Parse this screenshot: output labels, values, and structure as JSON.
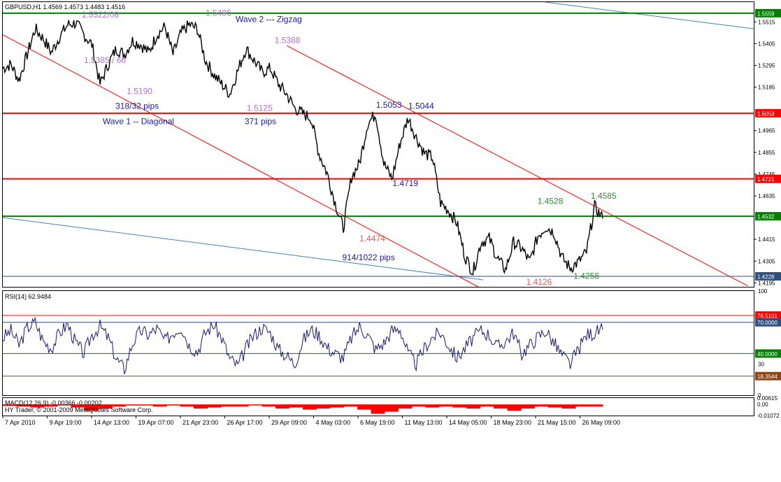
{
  "window": {
    "title": "GBPUSD,H1  1.4569 1.4573 1.4483 1.4516",
    "copyright": "HY Trader, © 2001-2009 MetaQuotes Software Corp."
  },
  "chart_data": [
    {
      "type": "line",
      "panel": "price",
      "symbol": "GBPUSD",
      "timeframe": "H1",
      "ylim": [
        1.4175,
        1.5615
      ],
      "price_ticks": [
        "1.5515",
        "1.5405",
        "1.5295",
        "1.5185",
        "1.4965",
        "1.4855",
        "1.4745",
        "1.4635",
        "1.4415",
        "1.4305",
        "1.4195"
      ],
      "x_labels": [
        "7 Apr 2010",
        "9 Apr 19:00",
        "14 Apr 13:00",
        "19 Apr 07:00",
        "21 Apr 23:00",
        "26 Apr 17:00",
        "29 Apr 09:00",
        "4 May 03:00",
        "6 May 19:00",
        "11 May 13:00",
        "14 May 05:00",
        "18 May 23:00",
        "21 May 15:00",
        "26 May 09:00"
      ],
      "series": [
        {
          "values": [
            1.528,
            1.53,
            1.522,
            1.535,
            1.548,
            1.543,
            1.536,
            1.544,
            1.55,
            1.551,
            1.545,
            1.54,
            1.52,
            1.53,
            1.538,
            1.535,
            1.542,
            1.54,
            1.536,
            1.545,
            1.549,
            1.535,
            1.546,
            1.55,
            1.548,
            1.532,
            1.525,
            1.52,
            1.515,
            1.527,
            1.538,
            1.532,
            1.526,
            1.528,
            1.52,
            1.515,
            1.508,
            1.505,
            1.503,
            1.485,
            1.475,
            1.46,
            1.447,
            1.473,
            1.48,
            1.5,
            1.505,
            1.48,
            1.472,
            1.49,
            1.503,
            1.493,
            1.485,
            1.483,
            1.46,
            1.456,
            1.45,
            1.433,
            1.425,
            1.44,
            1.442,
            1.432,
            1.426,
            1.44,
            1.437,
            1.43,
            1.443,
            1.448,
            1.445,
            1.432,
            1.427,
            1.43,
            1.435,
            1.458,
            1.452
          ]
        }
      ],
      "horizontal_lines": [
        {
          "value": 1.5559,
          "label": "1.5559",
          "color": "#008000"
        },
        {
          "value": 1.5053,
          "label": "1.5053",
          "color": "#ff0000"
        },
        {
          "value": 1.4721,
          "label": "1.4721",
          "color": "#ff0000"
        },
        {
          "value": 1.4532,
          "label": "1.4532",
          "color": "#008000"
        },
        {
          "value": 1.4228,
          "label": "1.4228",
          "color": "#2f4f7f"
        }
      ],
      "trend_lines": [
        {
          "color": "#ff0000",
          "from": {
            "xf": 0.0,
            "y": 1.545
          },
          "to": {
            "xf": 0.633,
            "y": 1.4175
          }
        },
        {
          "color": "#ff0000",
          "from": {
            "xf": 0.378,
            "y": 1.5395
          },
          "to": {
            "xf": 0.992,
            "y": 1.418
          }
        },
        {
          "color": "#4682b4",
          "from": {
            "xf": 0.0,
            "y": 1.4525
          },
          "to": {
            "xf": 0.64,
            "y": 1.421
          }
        },
        {
          "color": "#4682b4",
          "from": {
            "xf": 0.722,
            "y": 1.5615
          },
          "to": {
            "xf": 1.0,
            "y": 1.548
          }
        }
      ],
      "annotations": [
        {
          "text": "1.5522/08",
          "color": "#b070c8",
          "xf": 0.105,
          "y": 1.5537
        },
        {
          "text": "1.5496",
          "color": "#b070c8",
          "xf": 0.27,
          "y": 1.5546
        },
        {
          "text": "Wave 2 --- Zigzag",
          "color": "#1a1aa6",
          "xf": 0.31,
          "y": 1.5515
        },
        {
          "text": "1.5388",
          "color": "#b070c8",
          "xf": 0.362,
          "y": 1.5408
        },
        {
          "text": "1.5385 / 66",
          "color": "#b070c8",
          "xf": 0.108,
          "y": 1.5307
        },
        {
          "text": "1.5190",
          "color": "#b070c8",
          "xf": 0.165,
          "y": 1.515
        },
        {
          "text": "318/32  pips",
          "color": "#1a1aa6",
          "xf": 0.15,
          "y": 1.5075
        },
        {
          "text": "1.5125",
          "color": "#b070c8",
          "xf": 0.325,
          "y": 1.5065
        },
        {
          "text": "Wave 1 -- Diagonal",
          "color": "#1a1aa6",
          "xf": 0.133,
          "y": 1.4997
        },
        {
          "text": "371   pips",
          "color": "#1a1aa6",
          "xf": 0.322,
          "y": 1.4997
        },
        {
          "text": "1.5053",
          "color": "#1a1aa6",
          "xf": 0.497,
          "y": 1.508
        },
        {
          "text": "1.5044",
          "color": "#1a1aa6",
          "xf": 0.54,
          "y": 1.5075
        },
        {
          "text": "1.4719",
          "color": "#1a1aa6",
          "xf": 0.519,
          "y": 1.4685
        },
        {
          "text": "1.4528",
          "color": "#2e8b2e",
          "xf": 0.712,
          "y": 1.4595
        },
        {
          "text": "1.4585",
          "color": "#2e8b2e",
          "xf": 0.783,
          "y": 1.462
        },
        {
          "text": "1.4474",
          "color": "#e06060",
          "xf": 0.475,
          "y": 1.4405
        },
        {
          "text": "914/1022   pips",
          "color": "#1a1aa6",
          "xf": 0.452,
          "y": 1.431
        },
        {
          "text": "1.4126",
          "color": "#e06060",
          "xf": 0.697,
          "y": 1.4185
        },
        {
          "text": "1.4258",
          "color": "#2e8b2e",
          "xf": 0.76,
          "y": 1.4215
        }
      ]
    },
    {
      "type": "line",
      "panel": "rsi",
      "title": "RSI(14) 62.9484",
      "ylim": [
        0,
        100
      ],
      "ticks": [
        "100",
        "40.0000",
        "30",
        "0"
      ],
      "levels": [
        {
          "value": 76.5101,
          "label": "76.5101",
          "color": "#ff0000"
        },
        {
          "value": 70.0,
          "label": "70.0000",
          "color": "#2f4f7f"
        },
        {
          "value": 40.0,
          "label": "40.0000",
          "color": "#008000"
        },
        {
          "value": 18.3544,
          "label": "18.3544",
          "color": "#8b4513"
        }
      ],
      "series": [
        {
          "values": [
            55,
            62,
            48,
            65,
            70,
            52,
            45,
            60,
            68,
            50,
            40,
            58,
            66,
            55,
            35,
            25,
            50,
            62,
            58,
            64,
            52,
            60,
            66,
            48,
            42,
            60,
            68,
            55,
            35,
            28,
            45,
            58,
            65,
            60,
            44,
            38,
            30,
            52,
            63,
            58,
            46,
            40,
            36,
            55,
            66,
            58,
            44,
            50,
            62,
            64,
            40,
            30,
            45,
            56,
            60,
            48,
            36,
            45,
            55,
            62,
            58,
            46,
            52,
            60,
            40,
            48,
            56,
            62,
            50,
            38,
            30,
            44,
            58,
            60,
            63
          ]
        }
      ]
    },
    {
      "type": "bar",
      "panel": "macd",
      "title": "MACD(12,26,9) -0.00366 -0.00202",
      "ticks": [
        "0.00615",
        "0.00",
        "-0.01072"
      ],
      "ylim": [
        -0.01072,
        0.00615
      ],
      "values": [
        -0.0015,
        -0.002,
        -0.003,
        -0.002,
        -0.001,
        -0.003,
        -0.006,
        -0.004,
        -0.002,
        -0.001,
        -0.001,
        -0.002,
        -0.001,
        -0.002,
        -0.004,
        -0.003,
        -0.002,
        -0.002,
        -0.001,
        -0.002,
        -0.004,
        -0.003,
        -0.005,
        -0.004,
        -0.003,
        -0.002,
        -0.005,
        -0.009,
        -0.007,
        -0.004,
        -0.002,
        -0.003,
        -0.002,
        -0.003,
        -0.004,
        -0.002,
        -0.004,
        -0.006,
        -0.004,
        -0.002,
        -0.003,
        -0.004,
        -0.002,
        -0.002
      ]
    }
  ]
}
